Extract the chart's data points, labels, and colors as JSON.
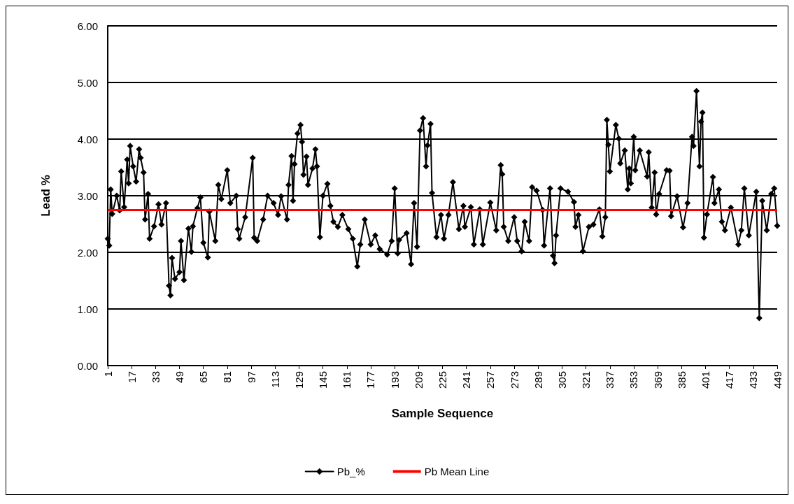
{
  "chart_data": {
    "type": "line",
    "xlabel": "Sample Sequence",
    "ylabel": "Lead %",
    "xlim": [
      1,
      449
    ],
    "xticks": [
      1,
      17,
      33,
      49,
      65,
      81,
      97,
      113,
      129,
      145,
      161,
      177,
      193,
      209,
      225,
      241,
      257,
      273,
      289,
      305,
      321,
      337,
      353,
      369,
      385,
      401,
      417,
      433,
      449
    ],
    "ylim": [
      0,
      6
    ],
    "yticks": [
      {
        "value": 0,
        "label": "0.00"
      },
      {
        "value": 1,
        "label": "1.00"
      },
      {
        "value": 2,
        "label": "2.00"
      },
      {
        "value": 3,
        "label": "3.00"
      },
      {
        "value": 4,
        "label": "4.00"
      },
      {
        "value": 5,
        "label": "5.00"
      },
      {
        "value": 6,
        "label": "6.00"
      }
    ],
    "grid": "y",
    "legend": "bottom",
    "marker": "diamond",
    "line_style": "solid",
    "series": [
      {
        "name": "Pb_%",
        "color": "#000000",
        "x": [
          1,
          2,
          3,
          4,
          7,
          9,
          10,
          12,
          14,
          15,
          16,
          18,
          20,
          22,
          23,
          25,
          26,
          28,
          29,
          32,
          35,
          37,
          40,
          42,
          43,
          44,
          46,
          49,
          50,
          52,
          55,
          57,
          58,
          61,
          63,
          65,
          68,
          69,
          73,
          75,
          77,
          81,
          83,
          87,
          88,
          89,
          93,
          98,
          99,
          101,
          105,
          108,
          112,
          115,
          117,
          121,
          122,
          124,
          125,
          126,
          128,
          130,
          131,
          132,
          134,
          135,
          138,
          140,
          141,
          143,
          145,
          148,
          150,
          152,
          155,
          158,
          162,
          165,
          168,
          170,
          173,
          177,
          180,
          183,
          188,
          191,
          193,
          195,
          196,
          201,
          204,
          206,
          208,
          210,
          212,
          214,
          215,
          217,
          218,
          221,
          224,
          226,
          229,
          232,
          236,
          239,
          240,
          244,
          246,
          250,
          252,
          257,
          261,
          264,
          265,
          266,
          269,
          273,
          275,
          278,
          280,
          283,
          285,
          288,
          292,
          293,
          297,
          299,
          300,
          301,
          304,
          309,
          313,
          314,
          316,
          319,
          323,
          326,
          330,
          332,
          334,
          335,
          336,
          337,
          341,
          343,
          344,
          347,
          349,
          350,
          351,
          353,
          354,
          357,
          362,
          363,
          365,
          367,
          368,
          370,
          375,
          377,
          378,
          382,
          386,
          389,
          392,
          393,
          395,
          397,
          398,
          399,
          400,
          402,
          406,
          407,
          410,
          412,
          414,
          418,
          423,
          425,
          427,
          430,
          435,
          437,
          439,
          442,
          445,
          447,
          449
        ],
        "values": [
          2.24,
          2.12,
          3.11,
          2.68,
          3.0,
          2.74,
          3.43,
          2.8,
          3.64,
          3.22,
          3.88,
          3.52,
          3.25,
          3.82,
          3.67,
          3.41,
          2.58,
          3.03,
          2.24,
          2.46,
          2.85,
          2.49,
          2.87,
          1.41,
          1.24,
          1.9,
          1.53,
          1.65,
          2.2,
          1.51,
          2.42,
          2.01,
          2.46,
          2.78,
          2.97,
          2.17,
          1.91,
          2.72,
          2.2,
          3.19,
          2.94,
          3.45,
          2.87,
          3.0,
          2.41,
          2.24,
          2.62,
          3.67,
          2.26,
          2.2,
          2.58,
          3.0,
          2.87,
          2.66,
          2.99,
          2.58,
          3.19,
          3.7,
          2.91,
          3.56,
          4.1,
          4.25,
          3.95,
          3.37,
          3.69,
          3.19,
          3.48,
          3.82,
          3.52,
          2.27,
          3.0,
          3.21,
          2.82,
          2.54,
          2.45,
          2.66,
          2.41,
          2.24,
          1.75,
          2.14,
          2.58,
          2.14,
          2.3,
          2.06,
          1.96,
          2.2,
          3.13,
          1.98,
          2.22,
          2.34,
          1.79,
          2.87,
          2.1,
          4.15,
          4.37,
          3.52,
          3.89,
          4.27,
          3.05,
          2.27,
          2.66,
          2.24,
          2.66,
          3.24,
          2.41,
          2.82,
          2.45,
          2.8,
          2.14,
          2.76,
          2.14,
          2.88,
          2.39,
          3.54,
          3.38,
          2.45,
          2.2,
          2.62,
          2.2,
          2.02,
          2.54,
          2.2,
          3.15,
          3.09,
          2.75,
          2.12,
          3.13,
          1.94,
          1.81,
          2.3,
          3.13,
          3.07,
          2.89,
          2.45,
          2.66,
          2.02,
          2.45,
          2.49,
          2.76,
          2.28,
          2.62,
          4.34,
          3.9,
          3.43,
          4.25,
          4.01,
          3.57,
          3.8,
          3.11,
          3.48,
          3.22,
          4.04,
          3.45,
          3.8,
          3.34,
          3.77,
          2.79,
          3.41,
          2.67,
          3.03,
          3.45,
          3.44,
          2.64,
          2.99,
          2.44,
          2.87,
          4.04,
          3.88,
          4.85,
          3.52,
          4.31,
          4.47,
          2.26,
          2.67,
          3.33,
          2.87,
          3.11,
          2.54,
          2.39,
          2.79,
          2.14,
          2.39,
          3.13,
          2.3,
          3.07,
          0.84,
          2.91,
          2.39,
          3.03,
          3.13,
          2.47
        ]
      }
    ],
    "ref_lines": [
      {
        "axis": "y",
        "value": 2.75,
        "label": "Pb Mean Line",
        "color": "#ff0000"
      }
    ]
  }
}
